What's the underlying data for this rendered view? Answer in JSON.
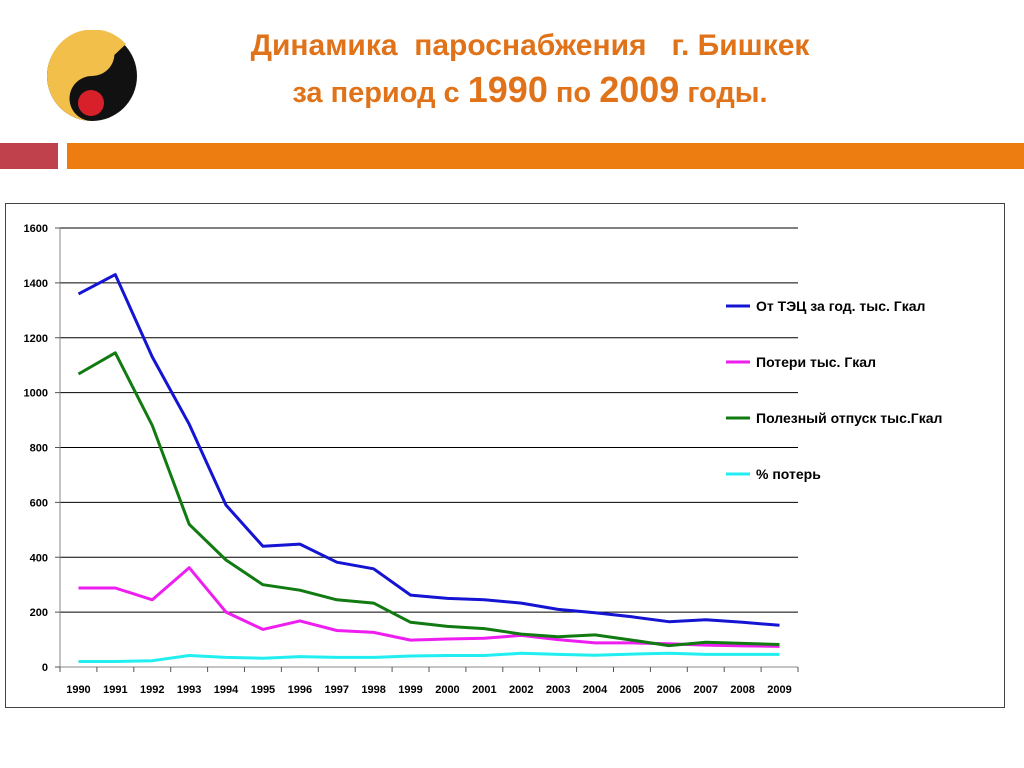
{
  "header": {
    "title_line1": "Динамика  пароснабжения   г. Бишкек",
    "title_line2_pre": "за период с ",
    "title_year_from": "1990",
    "title_line2_mid": " по ",
    "title_year_to": "2009",
    "title_line2_post": " годы.",
    "accent_color": "#e0731a"
  },
  "chart_data": {
    "type": "line",
    "title": "",
    "xlabel": "",
    "ylabel": "",
    "x": [
      "1990",
      "1991",
      "1992",
      "1993",
      "1994",
      "1995",
      "1996",
      "1997",
      "1998",
      "1999",
      "2000",
      "2001",
      "2002",
      "2003",
      "2004",
      "2005",
      "2006",
      "2007",
      "2008",
      "2009"
    ],
    "ylim": [
      0,
      1600
    ],
    "yticks": [
      0,
      200,
      400,
      600,
      800,
      1000,
      1200,
      1400,
      1600
    ],
    "grid": true,
    "legend_position": "right",
    "series": [
      {
        "name": "От ТЭЦ за год. тыс. Гкал",
        "color": "#1414d2",
        "values": [
          1360,
          1430,
          1130,
          885,
          590,
          440,
          448,
          382,
          358,
          262,
          250,
          245,
          233,
          210,
          198,
          183,
          165,
          172,
          163,
          152
        ]
      },
      {
        "name": "Потери тыс. Гкал",
        "color": "#ee1ef0",
        "values": [
          288,
          288,
          245,
          362,
          200,
          137,
          168,
          133,
          126,
          98,
          102,
          105,
          115,
          100,
          88,
          88,
          85,
          80,
          77,
          75
        ]
      },
      {
        "name": "Полезный отпуск тыс.Гкал",
        "color": "#117a11",
        "values": [
          1068,
          1145,
          880,
          520,
          390,
          300,
          280,
          245,
          233,
          163,
          148,
          140,
          120,
          110,
          117,
          98,
          78,
          90,
          86,
          82
        ]
      },
      {
        "name": "% потерь",
        "color": "#20eef0",
        "values": [
          20,
          20,
          23,
          42,
          35,
          32,
          38,
          35,
          35,
          40,
          42,
          42,
          50,
          46,
          43,
          47,
          50,
          46,
          46,
          46
        ]
      }
    ]
  }
}
